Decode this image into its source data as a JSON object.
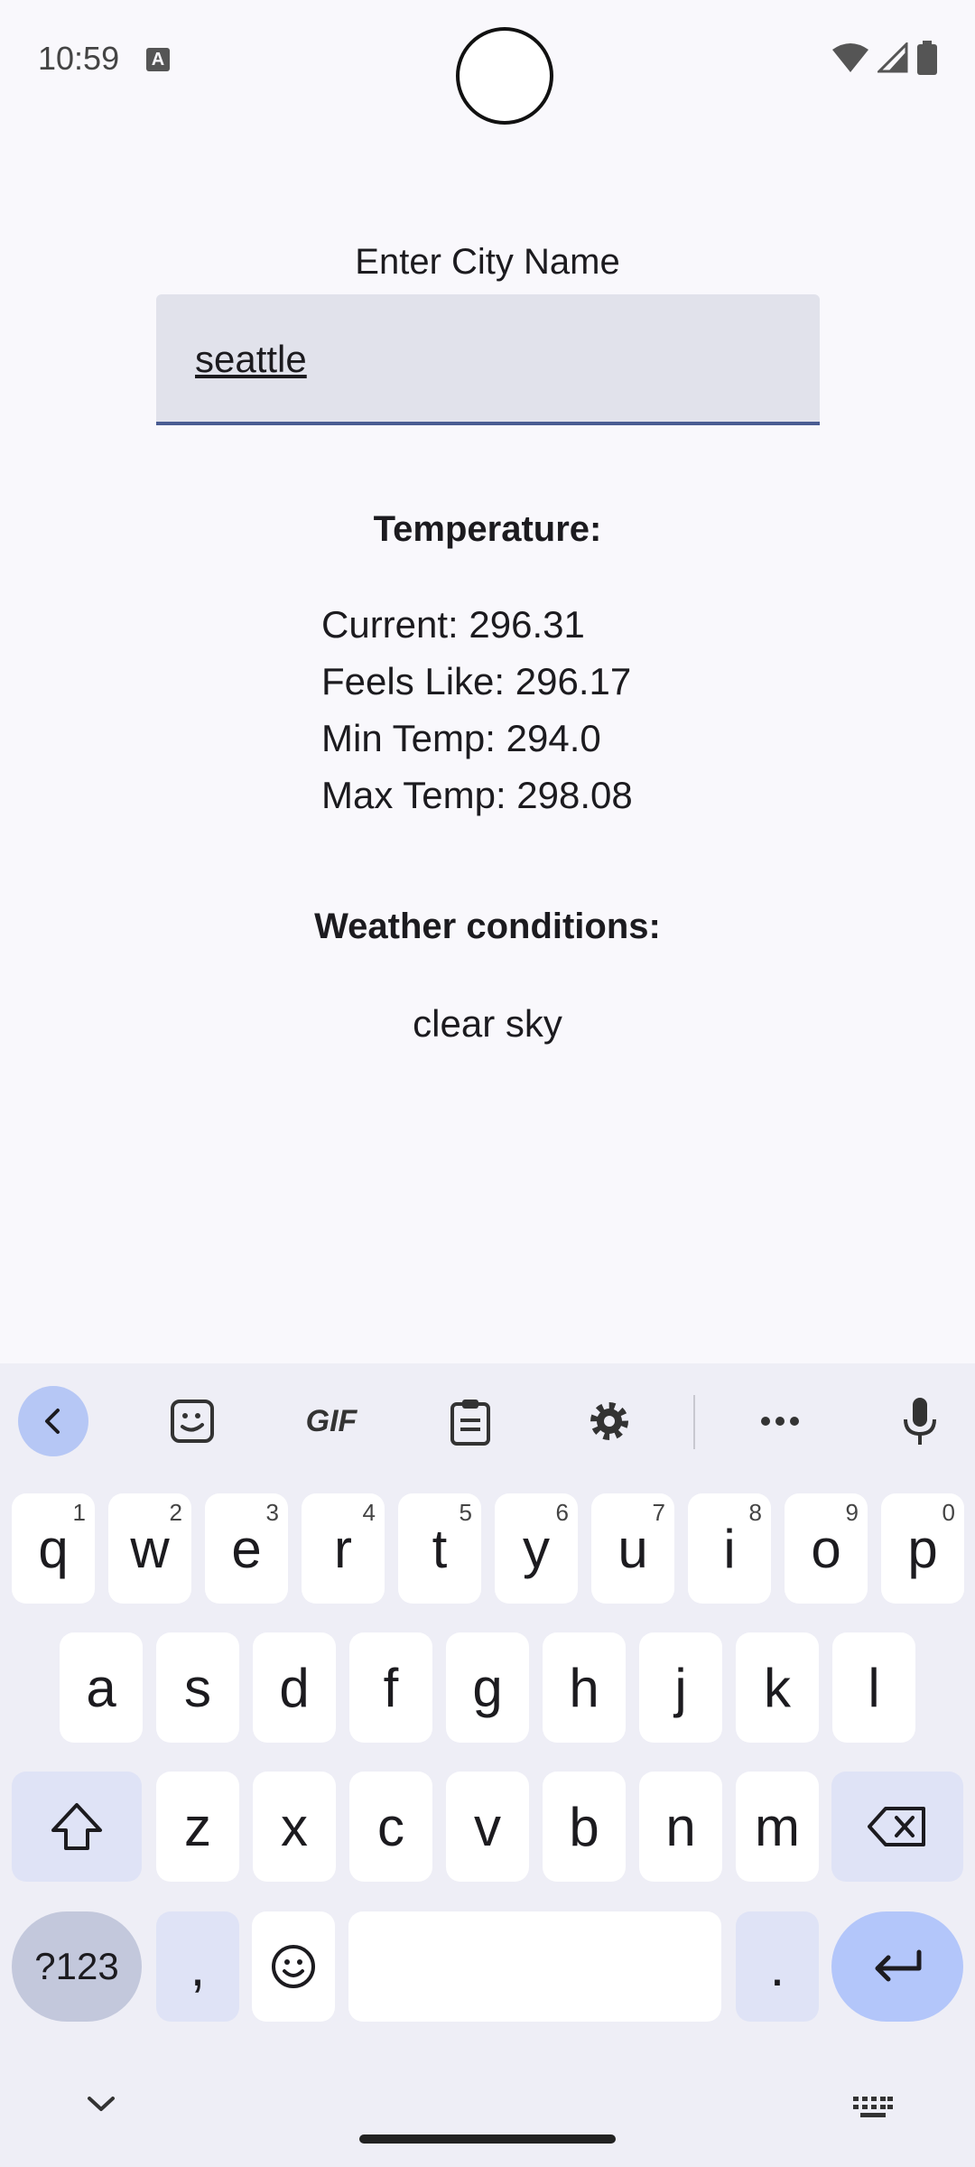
{
  "status": {
    "time": "10:59",
    "notif_icon": "A"
  },
  "form": {
    "label": "Enter City Name",
    "value": "seattle"
  },
  "temperature": {
    "heading": "Temperature:",
    "current": "Current: 296.31",
    "feels_like": "Feels Like: 296.17",
    "min": "Min Temp: 294.0",
    "max": "Max Temp: 298.08"
  },
  "conditions": {
    "heading": "Weather conditions:",
    "value": "clear sky"
  },
  "keyboard": {
    "row1": [
      {
        "k": "q",
        "h": "1"
      },
      {
        "k": "w",
        "h": "2"
      },
      {
        "k": "e",
        "h": "3"
      },
      {
        "k": "r",
        "h": "4"
      },
      {
        "k": "t",
        "h": "5"
      },
      {
        "k": "y",
        "h": "6"
      },
      {
        "k": "u",
        "h": "7"
      },
      {
        "k": "i",
        "h": "8"
      },
      {
        "k": "o",
        "h": "9"
      },
      {
        "k": "p",
        "h": "0"
      }
    ],
    "row2": [
      "a",
      "s",
      "d",
      "f",
      "g",
      "h",
      "j",
      "k",
      "l"
    ],
    "row3": [
      "z",
      "x",
      "c",
      "v",
      "b",
      "n",
      "m"
    ],
    "sym_label": "?123",
    "comma": ",",
    "period": ".",
    "gif_label": "GIF"
  },
  "icons": {
    "toolbar": [
      "back-icon",
      "sticker-icon",
      "gif-icon",
      "clipboard-icon",
      "settings-icon",
      "more-icon",
      "mic-icon"
    ],
    "keys": [
      "shift-icon",
      "backspace-icon",
      "emoji-icon",
      "enter-icon"
    ]
  },
  "colors": {
    "accent": "#4a5c92",
    "field_bg": "#e1e2eb",
    "enter_key": "#b3c6fa"
  }
}
